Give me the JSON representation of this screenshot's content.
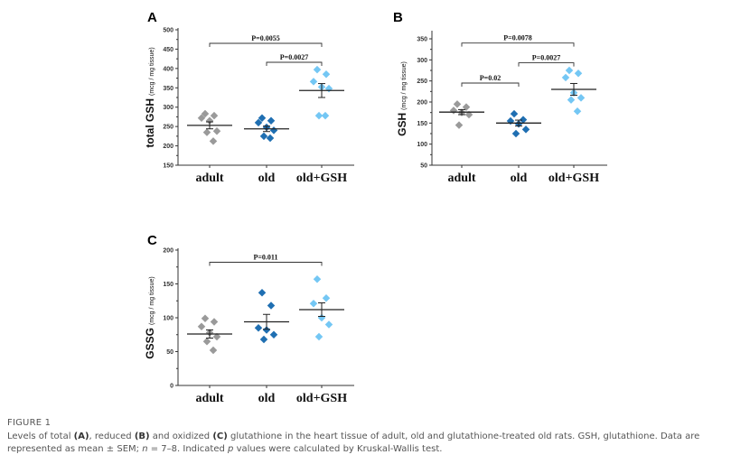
{
  "chart_data": [
    {
      "type": "scatter",
      "panel": "A",
      "ylabel": "total GSH",
      "yunit": "(mcg / mg tissue)",
      "ylim": [
        150,
        500
      ],
      "yticks": [
        150,
        200,
        250,
        300,
        350,
        400,
        450,
        500
      ],
      "categories": [
        "adult",
        "old",
        "old+GSH"
      ],
      "series": [
        {
          "values": [
            283,
            278,
            272,
            265,
            238,
            235,
            212
          ],
          "mean": 253,
          "sem": 9,
          "color": "#9a9a9a"
        },
        {
          "values": [
            272,
            265,
            260,
            248,
            240,
            225,
            220
          ],
          "mean": 244,
          "sem": 7,
          "color": "#1f6fb2"
        },
        {
          "values": [
            397,
            385,
            366,
            352,
            348,
            278,
            278
          ],
          "mean": 343,
          "sem": 18,
          "color": "#74c7f4"
        }
      ],
      "annotations": [
        {
          "from": 0,
          "to": 2,
          "y": 465,
          "label": "P=0.0055"
        },
        {
          "from": 1,
          "to": 2,
          "y": 416,
          "label": "P=0.0027"
        }
      ],
      "grid": false
    },
    {
      "type": "scatter",
      "panel": "B",
      "ylabel": "GSH",
      "yunit": "(mcg / mg tissue)",
      "ylim": [
        50,
        365
      ],
      "yticks": [
        50,
        100,
        150,
        200,
        250,
        300,
        350
      ],
      "categories": [
        "adult",
        "old",
        "old+GSH"
      ],
      "series": [
        {
          "values": [
            195,
            188,
            180,
            175,
            170,
            145
          ],
          "mean": 176,
          "sem": 6,
          "color": "#9a9a9a"
        },
        {
          "values": [
            172,
            158,
            155,
            148,
            135,
            125
          ],
          "mean": 150,
          "sem": 7,
          "color": "#1f6fb2"
        },
        {
          "values": [
            275,
            268,
            258,
            222,
            210,
            205,
            178
          ],
          "mean": 230,
          "sem": 14,
          "color": "#74c7f4"
        }
      ],
      "annotations": [
        {
          "from": 0,
          "to": 2,
          "y": 340,
          "label": "P=0.0078"
        },
        {
          "from": 1,
          "to": 2,
          "y": 293,
          "label": "P=0.0027"
        },
        {
          "from": 0,
          "to": 1,
          "y": 245,
          "label": "P=0.02"
        }
      ],
      "grid": false
    },
    {
      "type": "scatter",
      "panel": "C",
      "ylabel": "GSSG",
      "yunit": "(mcg / mg tissue)",
      "ylim": [
        0,
        200
      ],
      "yticks": [
        0,
        50,
        100,
        150,
        200
      ],
      "categories": [
        "adult",
        "old",
        "old+GSH"
      ],
      "series": [
        {
          "values": [
            99,
            94,
            87,
            78,
            72,
            65,
            52
          ],
          "mean": 76,
          "sem": 6,
          "color": "#9a9a9a"
        },
        {
          "values": [
            137,
            118,
            85,
            82,
            75,
            68
          ],
          "mean": 94,
          "sem": 11,
          "color": "#1f6fb2"
        },
        {
          "values": [
            157,
            129,
            121,
            100,
            90,
            72
          ],
          "mean": 112,
          "sem": 10,
          "color": "#74c7f4"
        }
      ],
      "annotations": [
        {
          "from": 0,
          "to": 2,
          "y": 182,
          "label": "P=0.011"
        }
      ],
      "grid": false
    }
  ],
  "caption": {
    "title": "FIGURE 1",
    "segments": [
      {
        "text": "Levels of total "
      },
      {
        "text": "(A)",
        "bold": true
      },
      {
        "text": ", reduced "
      },
      {
        "text": "(B)",
        "bold": true
      },
      {
        "text": " and oxidized "
      },
      {
        "text": "(C)",
        "bold": true
      },
      {
        "text": " glutathione in the heart tissue of adult, old and glutathione-treated old rats. GSH, glutathione. Data are represented as mean "
      },
      {
        "text": "±"
      },
      {
        "text": " SEM; "
      },
      {
        "text": "n",
        "italic": true
      },
      {
        "text": " = 7–8. Indicated "
      },
      {
        "text": "p",
        "italic": true
      },
      {
        "text": " values were calculated by Kruskal-Wallis test."
      }
    ]
  }
}
